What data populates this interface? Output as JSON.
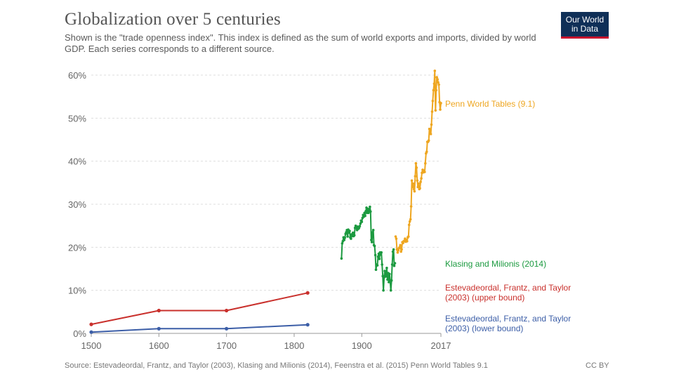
{
  "header": {
    "title": "Globalization over 5 centuries",
    "subtitle": "Shown is the \"trade openness index\". This index is defined as the sum of world exports and imports, divided by world GDP. Each series corresponds to a different source."
  },
  "logo": {
    "line1": "Our World",
    "line2": "in Data",
    "bg_color": "#0f2f57",
    "accent_color": "#c8102e"
  },
  "footer": {
    "source": "Source: Estevadeordal, Frantz, and Taylor (2003), Klasing and Milionis (2014), Feenstra et al. (2015) Penn World Tables 9.1",
    "license": "CC BY"
  },
  "chart_data": {
    "type": "line",
    "title": "Globalization over 5 centuries",
    "xlabel": "",
    "ylabel": "",
    "xlim": [
      1500,
      2017
    ],
    "ylim": [
      0,
      60
    ],
    "x_ticks": [
      1500,
      1600,
      1700,
      1800,
      1900,
      2017
    ],
    "y_ticks": [
      {
        "value": 0,
        "label": "0%"
      },
      {
        "value": 10,
        "label": "10%"
      },
      {
        "value": 20,
        "label": "20%"
      },
      {
        "value": 30,
        "label": "30%"
      },
      {
        "value": 40,
        "label": "40%"
      },
      {
        "value": 50,
        "label": "50%"
      },
      {
        "value": 60,
        "label": "60%"
      }
    ],
    "grid": "horizontal dashed",
    "series": [
      {
        "name": "upper",
        "label_lines": [
          "Estevadeordal, Frantz, and Taylor",
          "(2003) (upper bound)"
        ],
        "color": "#c9302c",
        "points": [
          [
            1500,
            2.1
          ],
          [
            1600,
            5.3
          ],
          [
            1700,
            5.3
          ],
          [
            1820,
            9.4
          ]
        ]
      },
      {
        "name": "lower",
        "label_lines": [
          "Estevadeordal, Frantz, and Taylor",
          "(2003) (lower bound)"
        ],
        "color": "#3c5ea7",
        "points": [
          [
            1500,
            0.3
          ],
          [
            1600,
            1.1
          ],
          [
            1700,
            1.1
          ],
          [
            1820,
            2.0
          ]
        ]
      },
      {
        "name": "klasing",
        "label_lines": [
          "Klasing and Milionis (2014)"
        ],
        "color": "#1c9a40",
        "points": [
          [
            1870,
            17.4
          ],
          [
            1871,
            20.9
          ],
          [
            1872,
            21.4
          ],
          [
            1873,
            22.3
          ],
          [
            1874,
            21.7
          ],
          [
            1875,
            22.2
          ],
          [
            1876,
            23.1
          ],
          [
            1877,
            23.5
          ],
          [
            1878,
            24.0
          ],
          [
            1879,
            22.5
          ],
          [
            1880,
            24.1
          ],
          [
            1881,
            23.4
          ],
          [
            1882,
            23.8
          ],
          [
            1883,
            22.3
          ],
          [
            1884,
            22.0
          ],
          [
            1885,
            23.0
          ],
          [
            1886,
            22.6
          ],
          [
            1887,
            23.4
          ],
          [
            1888,
            22.6
          ],
          [
            1889,
            22.8
          ],
          [
            1890,
            24.5
          ],
          [
            1891,
            25.0
          ],
          [
            1892,
            24.5
          ],
          [
            1893,
            24.0
          ],
          [
            1894,
            24.8
          ],
          [
            1895,
            24.3
          ],
          [
            1896,
            24.5
          ],
          [
            1897,
            24.9
          ],
          [
            1898,
            25.5
          ],
          [
            1899,
            26.2
          ],
          [
            1900,
            25.9
          ],
          [
            1901,
            26.8
          ],
          [
            1902,
            27.5
          ],
          [
            1903,
            27.1
          ],
          [
            1904,
            28.0
          ],
          [
            1905,
            27.3
          ],
          [
            1906,
            28.4
          ],
          [
            1907,
            29.2
          ],
          [
            1908,
            28.0
          ],
          [
            1909,
            28.9
          ],
          [
            1910,
            28.0
          ],
          [
            1911,
            28.4
          ],
          [
            1912,
            29.4
          ],
          [
            1913,
            28.3
          ],
          [
            1914,
            21.7
          ],
          [
            1915,
            21.2
          ],
          [
            1916,
            23.5
          ],
          [
            1917,
            24.0
          ],
          [
            1918,
            20.5
          ],
          [
            1919,
            20.3
          ],
          [
            1920,
            18.2
          ],
          [
            1921,
            14.8
          ],
          [
            1922,
            16.0
          ],
          [
            1923,
            15.8
          ],
          [
            1924,
            17.8
          ],
          [
            1925,
            18.5
          ],
          [
            1926,
            17.3
          ],
          [
            1927,
            18.8
          ],
          [
            1928,
            18.3
          ],
          [
            1929,
            18.8
          ],
          [
            1930,
            16.0
          ],
          [
            1931,
            13.3
          ],
          [
            1932,
            10.0
          ],
          [
            1933,
            13.0
          ],
          [
            1934,
            14.5
          ],
          [
            1935,
            13.5
          ],
          [
            1936,
            13.2
          ],
          [
            1937,
            15.2
          ],
          [
            1938,
            12.5
          ],
          [
            1939,
            14.0
          ],
          [
            1940,
            11.9
          ],
          [
            1941,
            13.8
          ],
          [
            1942,
            12.0
          ],
          [
            1943,
            10.0
          ],
          [
            1944,
            12.3
          ],
          [
            1945,
            16.0
          ],
          [
            1946,
            19.0
          ],
          [
            1947,
            19.5
          ],
          [
            1948,
            15.7
          ],
          [
            1949,
            16.3
          ]
        ]
      },
      {
        "name": "pwt",
        "label_lines": [
          "Penn World Tables (9.1)"
        ],
        "color": "#eea620",
        "points": [
          [
            1950,
            22.5
          ],
          [
            1951,
            22.0
          ],
          [
            1952,
            19.5
          ],
          [
            1953,
            18.8
          ],
          [
            1954,
            19.3
          ],
          [
            1955,
            19.8
          ],
          [
            1956,
            20.0
          ],
          [
            1957,
            20.5
          ],
          [
            1958,
            19.0
          ],
          [
            1959,
            19.5
          ],
          [
            1960,
            21.2
          ],
          [
            1961,
            21.0
          ],
          [
            1962,
            21.4
          ],
          [
            1963,
            21.5
          ],
          [
            1964,
            22.0
          ],
          [
            1965,
            21.3
          ],
          [
            1966,
            21.7
          ],
          [
            1967,
            21.4
          ],
          [
            1968,
            22.3
          ],
          [
            1969,
            22.5
          ],
          [
            1970,
            25.2
          ],
          [
            1971,
            26.0
          ],
          [
            1972,
            26.5
          ],
          [
            1973,
            29.5
          ],
          [
            1974,
            35.5
          ],
          [
            1975,
            34.0
          ],
          [
            1976,
            34.8
          ],
          [
            1977,
            33.5
          ],
          [
            1978,
            33.0
          ],
          [
            1979,
            36.5
          ],
          [
            1980,
            39.5
          ],
          [
            1981,
            38.5
          ],
          [
            1982,
            35.5
          ],
          [
            1983,
            34.0
          ],
          [
            1984,
            34.8
          ],
          [
            1985,
            33.5
          ],
          [
            1986,
            33.7
          ],
          [
            1987,
            35.2
          ],
          [
            1988,
            36.0
          ],
          [
            1989,
            37.3
          ],
          [
            1990,
            38.0
          ],
          [
            1991,
            37.4
          ],
          [
            1992,
            37.8
          ],
          [
            1993,
            37.5
          ],
          [
            1994,
            39.5
          ],
          [
            1995,
            41.8
          ],
          [
            1996,
            42.2
          ],
          [
            1997,
            44.5
          ],
          [
            1998,
            44.5
          ],
          [
            1999,
            44.8
          ],
          [
            2000,
            47.5
          ],
          [
            2001,
            46.5
          ],
          [
            2002,
            46.3
          ],
          [
            2003,
            48.5
          ],
          [
            2004,
            51.5
          ],
          [
            2005,
            54.0
          ],
          [
            2006,
            56.5
          ],
          [
            2007,
            58.0
          ],
          [
            2008,
            61.0
          ],
          [
            2009,
            51.8
          ],
          [
            2010,
            56.5
          ],
          [
            2011,
            59.5
          ],
          [
            2012,
            59.0
          ],
          [
            2013,
            58.3
          ],
          [
            2014,
            57.8
          ],
          [
            2015,
            53.7
          ],
          [
            2016,
            52.0
          ],
          [
            2017,
            53.5
          ]
        ]
      }
    ]
  }
}
